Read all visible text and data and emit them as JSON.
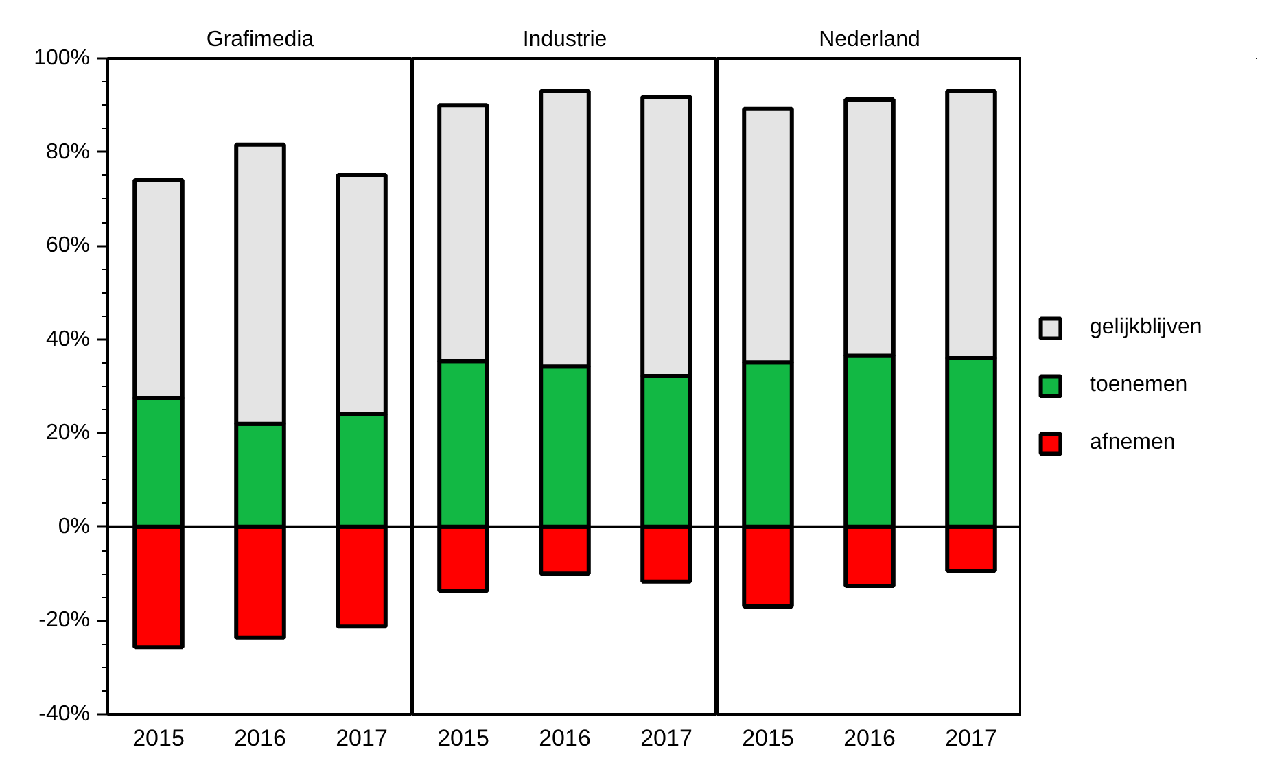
{
  "chart_data": [
    {
      "type": "bar",
      "title": "Grafimedia",
      "categories": [
        "2015",
        "2016",
        "2017"
      ],
      "stacked": true,
      "ylim": [
        -40,
        100
      ],
      "yticks": [
        {
          "value": -40,
          "label": "-40%"
        },
        {
          "value": -35,
          "label": null
        },
        {
          "value": -30,
          "label": null
        },
        {
          "value": -25,
          "label": null
        },
        {
          "value": -20,
          "label": "-20%"
        },
        {
          "value": -15,
          "label": null
        },
        {
          "value": -10,
          "label": null
        },
        {
          "value": -5,
          "label": null
        },
        {
          "value": 0,
          "label": "0%"
        },
        {
          "value": 5,
          "label": null
        },
        {
          "value": 10,
          "label": null
        },
        {
          "value": 15,
          "label": null
        },
        {
          "value": 20,
          "label": "20%"
        },
        {
          "value": 25,
          "label": null
        },
        {
          "value": 30,
          "label": null
        },
        {
          "value": 35,
          "label": null
        },
        {
          "value": 40,
          "label": "40%"
        },
        {
          "value": 45,
          "label": null
        },
        {
          "value": 50,
          "label": null
        },
        {
          "value": 55,
          "label": null
        },
        {
          "value": 60,
          "label": "60%"
        },
        {
          "value": 65,
          "label": null
        },
        {
          "value": 70,
          "label": null
        },
        {
          "value": 75,
          "label": null
        },
        {
          "value": 80,
          "label": "80%"
        },
        {
          "value": 85,
          "label": null
        },
        {
          "value": 90,
          "label": null
        },
        {
          "value": 95,
          "label": null
        },
        {
          "value": 100,
          "label": "100%"
        }
      ],
      "series": [
        {
          "color": "#ff0000",
          "values": [
            -25.7,
            -23.7,
            -21.3
          ]
        },
        {
          "color": "#12b844",
          "values": [
            27.5,
            22,
            24
          ]
        },
        {
          "color": "#e4e4e4",
          "values": [
            46.5,
            59.6,
            51.1
          ]
        }
      ],
      "ref_lines": [
        {
          "axis": "y",
          "value": 0,
          "color": "#000000"
        }
      ],
      "legend": false,
      "grid": false
    },
    {
      "type": "bar",
      "title": "Industrie",
      "categories": [
        "2015",
        "2016",
        "2017"
      ],
      "stacked": true,
      "ylim": [
        -40,
        100
      ],
      "tick_labels": "x",
      "series": [
        {
          "color": "#ff0000",
          "values": [
            -13.7,
            -10,
            -11.7
          ]
        },
        {
          "color": "#12b844",
          "values": [
            35.4,
            34.2,
            32.2
          ]
        },
        {
          "color": "#e4e4e4",
          "values": [
            54.6,
            58.8,
            59.6
          ]
        }
      ],
      "ref_lines": [
        {
          "axis": "y",
          "value": 0,
          "color": "#000000"
        }
      ],
      "legend": false,
      "grid": false
    },
    {
      "type": "bar",
      "title": "Nederland",
      "categories": [
        "2015",
        "2016",
        "2017"
      ],
      "stacked": true,
      "ylim": [
        -40,
        100
      ],
      "tick_labels": "x",
      "series": [
        {
          "name": "afnemen",
          "color": "#ff0000",
          "values": [
            -17,
            -12.6,
            -9.4
          ]
        },
        {
          "name": "toenemen",
          "color": "#12b844",
          "values": [
            35.1,
            36.5,
            36
          ]
        },
        {
          "name": "gelijkblijven",
          "color": "#e4e4e4",
          "values": [
            54.1,
            54.7,
            57
          ]
        }
      ],
      "ref_lines": [
        {
          "axis": "y",
          "value": 0,
          "color": "#000000"
        }
      ],
      "legend": "right",
      "grid": false
    }
  ]
}
